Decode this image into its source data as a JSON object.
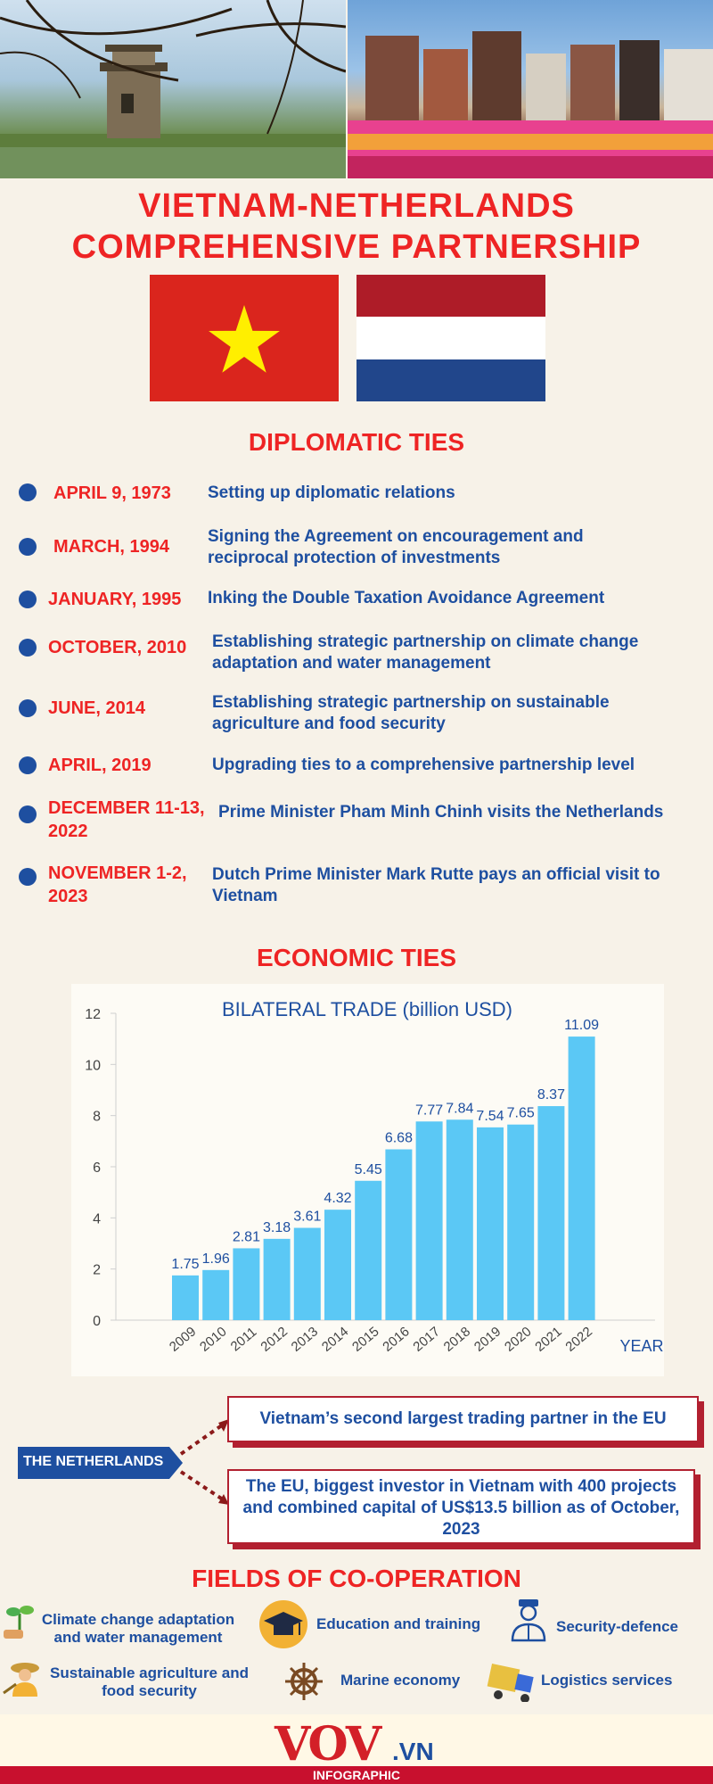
{
  "title": {
    "line1": "VIETNAM-NETHERLANDS",
    "line2": "COMPREHENSIVE PARTNERSHIP"
  },
  "colors": {
    "accent_red": "#ee2424",
    "accent_blue": "#1e4fa0",
    "bar": "#5bc8f5",
    "background": "#f7f2e8"
  },
  "diplomatic": {
    "heading": "DIPLOMATIC TIES",
    "events": [
      {
        "date": "APRIL 9, 1973",
        "text": "Setting up diplomatic relations"
      },
      {
        "date": "MARCH, 1994",
        "text": "Signing the Agreement on encouragement and reciprocal protection of investments"
      },
      {
        "date": "JANUARY, 1995",
        "text": "Inking the Double Taxation Avoidance Agreement"
      },
      {
        "date": "OCTOBER, 2010",
        "text": "Establishing strategic partnership on climate change adaptation and water management"
      },
      {
        "date": "JUNE, 2014",
        "text": "Establishing strategic partnership on sustainable agriculture and food security"
      },
      {
        "date": "APRIL, 2019",
        "text": "Upgrading ties to a comprehensive partnership level"
      },
      {
        "date": "DECEMBER 11-13, 2022",
        "text": "Prime Minister Pham Minh Chinh visits the Netherlands"
      },
      {
        "date": "NOVEMBER 1-2, 2023",
        "text": "Dutch Prime Minister Mark Rutte pays an official visit to Vietnam"
      }
    ]
  },
  "economic": {
    "heading": "ECONOMIC TIES"
  },
  "chart_data": {
    "type": "bar",
    "title": "BILATERAL TRADE (billion USD)",
    "xlabel": "YEAR",
    "ylabel": "",
    "ylim": [
      0,
      12
    ],
    "yticks": [
      "0",
      "2",
      "4",
      "6",
      "8",
      "10",
      "12"
    ],
    "categories": [
      "2009",
      "2010",
      "2011",
      "2012",
      "2013",
      "2014",
      "2015",
      "2016",
      "2017",
      "2018",
      "2019",
      "2020",
      "2021",
      "2022"
    ],
    "values": [
      1.75,
      1.96,
      2.81,
      3.18,
      3.61,
      4.32,
      5.45,
      6.68,
      7.77,
      7.84,
      7.54,
      7.65,
      8.37,
      11.09
    ],
    "labels": [
      "1.75",
      "1.96",
      "2.81",
      "3.18",
      "3.61",
      "4.32",
      "5.45",
      "6.68",
      "7.77",
      "7.84",
      "7.54",
      "7.65",
      "8.37",
      "11.09"
    ],
    "grid": false,
    "legend": "none"
  },
  "netherlands": {
    "tag": "THE NETHERLANDS",
    "fact1": "Vietnam’s second largest trading partner in the EU",
    "fact2": "The EU, biggest investor in Vietnam with 400 projects and combined capital of US$13.5 billion as of October, 2023"
  },
  "fields": {
    "heading": "FIELDS OF CO-OPERATION",
    "items": [
      {
        "label": "Climate change adaptation and water management",
        "icon": "plant-icon"
      },
      {
        "label": "Education and training",
        "icon": "graduation-cap-icon"
      },
      {
        "label": "Security-defence",
        "icon": "officer-icon"
      },
      {
        "label": "Sustainable agriculture and food security",
        "icon": "farmer-icon"
      },
      {
        "label": "Marine economy",
        "icon": "ship-wheel-icon"
      },
      {
        "label": "Logistics services",
        "icon": "truck-icon"
      }
    ]
  },
  "footer": {
    "logo": "VOV",
    "suffix": ".VN",
    "tag": "INFOGRAPHIC"
  }
}
